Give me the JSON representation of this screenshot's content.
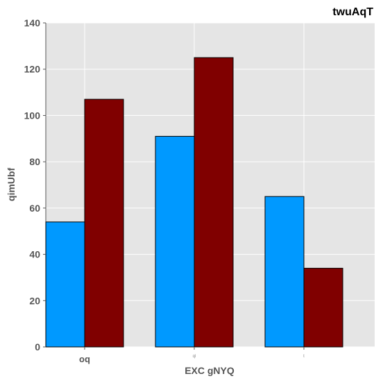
{
  "chart_data": {
    "type": "bar",
    "title": "twuAqT",
    "xlabel": "EXC gNYQ",
    "ylabel": "qimUbf",
    "categories": [
      "oq",
      "ql",
      "t"
    ],
    "series": [
      {
        "values": [
          54,
          91,
          65
        ],
        "color": "#0099ff"
      },
      {
        "values": [
          107,
          125,
          34
        ],
        "color": "#800000"
      }
    ],
    "ylim": [
      0,
      140
    ],
    "yticks": [
      0,
      20,
      40,
      60,
      80,
      100,
      120,
      140
    ],
    "grid": true,
    "background": "#e5e5e5"
  }
}
